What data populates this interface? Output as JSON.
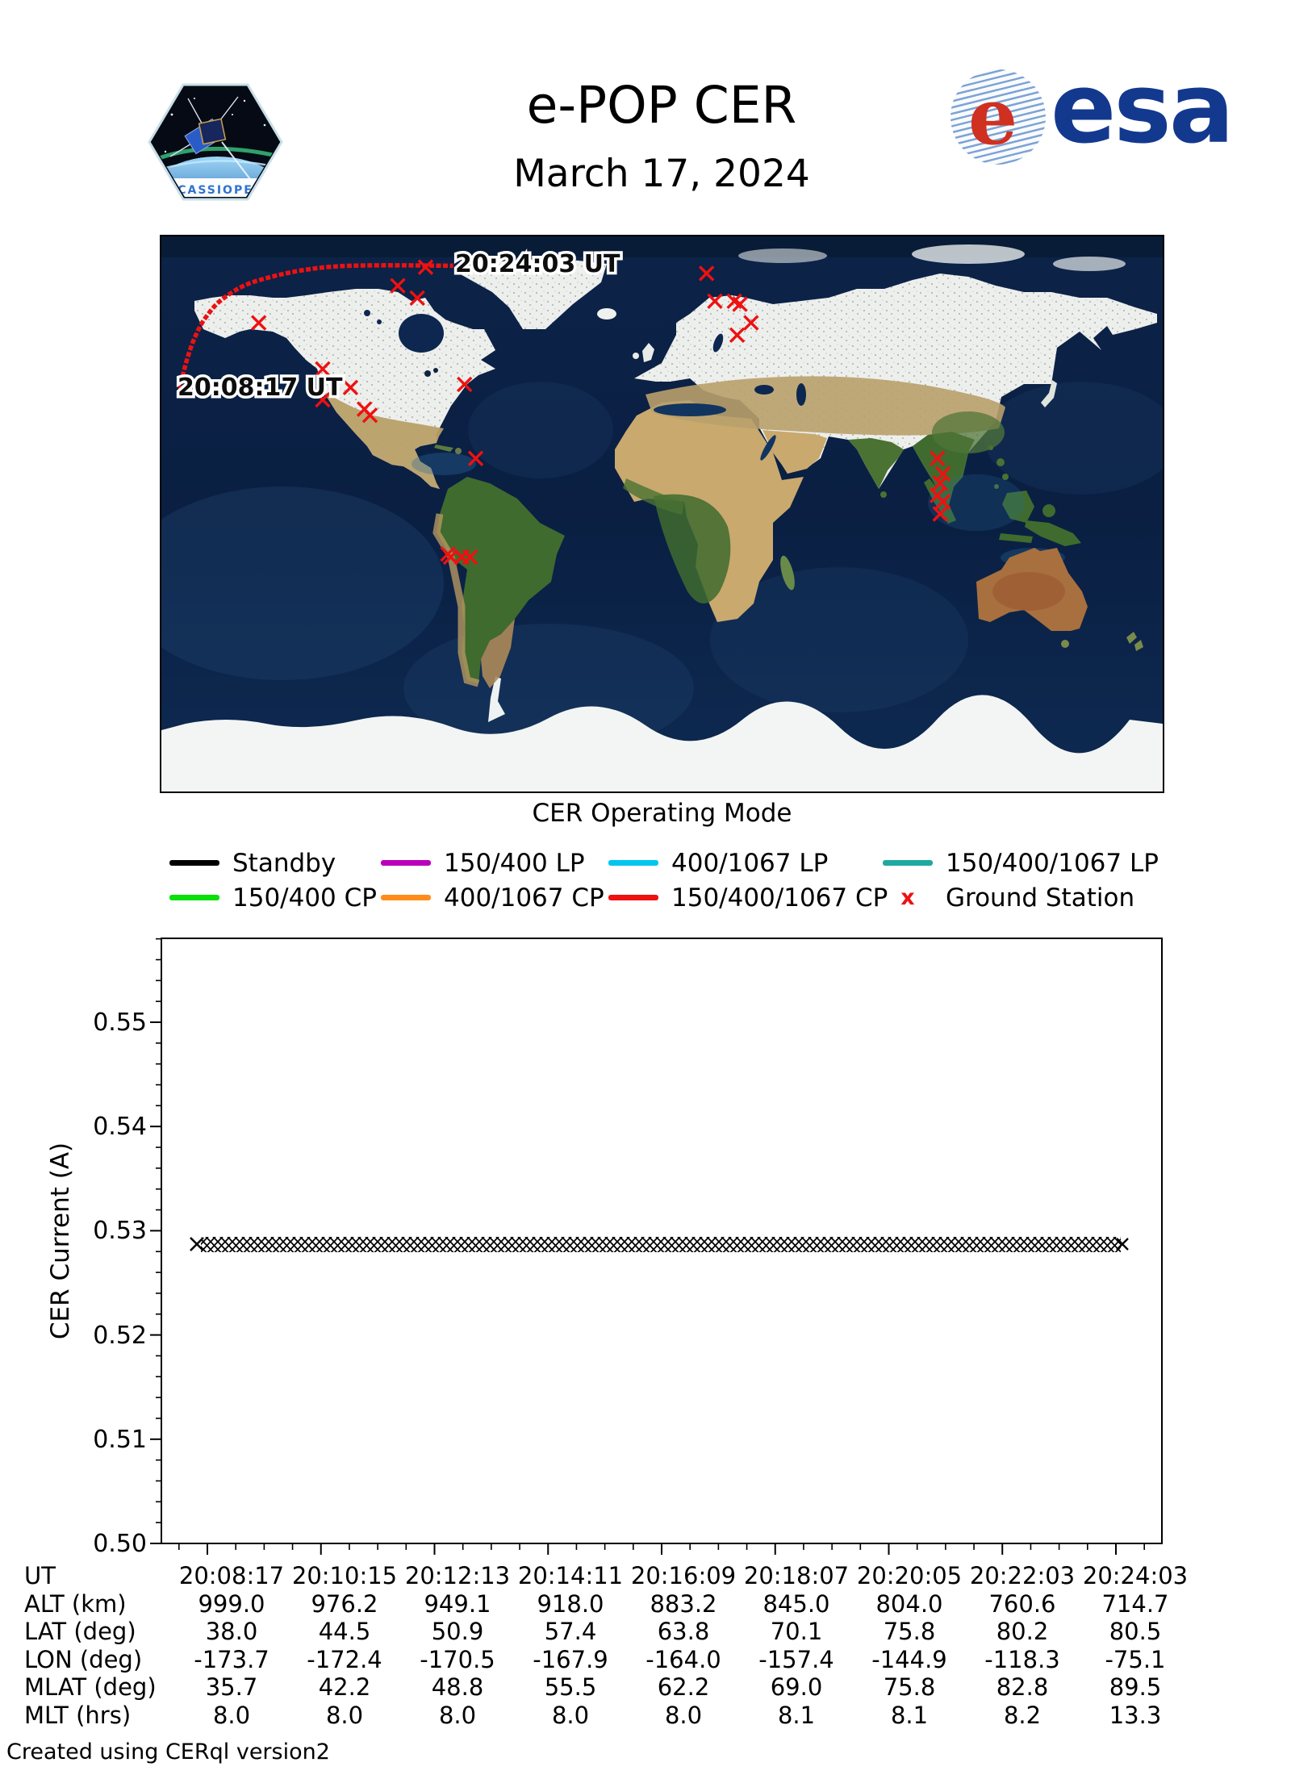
{
  "header": {
    "title": "e-POP CER",
    "date": "March 17, 2024",
    "patch_label": "CASSIOPE",
    "esa_text": "esa",
    "esa_e": "e"
  },
  "map": {
    "track_start_label": "20:08:17 UT",
    "track_end_label": "20:24:03 UT",
    "caption": "CER Operating Mode"
  },
  "legend": {
    "items": [
      {
        "label": "Standby",
        "color": "#000000",
        "type": "line"
      },
      {
        "label": "150/400 LP",
        "color": "#bb00bb",
        "type": "line"
      },
      {
        "label": "400/1067 LP",
        "color": "#00c6f0",
        "type": "line"
      },
      {
        "label": "150/400/1067 LP",
        "color": "#1fa8a2",
        "type": "line"
      },
      {
        "label": "150/400 CP",
        "color": "#0ae00a",
        "type": "line"
      },
      {
        "label": "400/1067 CP",
        "color": "#ff8c1a",
        "type": "line"
      },
      {
        "label": "150/400/1067 CP",
        "color": "#ee1111",
        "type": "line"
      },
      {
        "label": "Ground Station",
        "color": "#ee1111",
        "type": "x-marker",
        "marker": "x"
      }
    ]
  },
  "chart_data": [
    {
      "type": "map",
      "projection": "equirectangular",
      "extent": {
        "lon": [
          -180,
          180
        ],
        "lat": [
          -90,
          90
        ]
      },
      "title": "CER Operating Mode",
      "ground_track": {
        "mode": "150/400/1067 CP",
        "color": "#ee1111",
        "start_label": "20:08:17 UT",
        "end_label": "20:24:03 UT",
        "points_lon_lat": [
          [
            -173.7,
            38.0
          ],
          [
            -172.4,
            44.5
          ],
          [
            -170.5,
            50.9
          ],
          [
            -167.9,
            57.4
          ],
          [
            -164.0,
            63.8
          ],
          [
            -157.4,
            70.1
          ],
          [
            -144.9,
            75.8
          ],
          [
            -118.3,
            80.2
          ],
          [
            -75.1,
            80.5
          ]
        ]
      },
      "ground_stations_lon_lat": [
        [
          -145,
          62
        ],
        [
          -95,
          74
        ],
        [
          -88,
          70
        ],
        [
          -85,
          80
        ],
        [
          -122,
          47
        ],
        [
          -112,
          41
        ],
        [
          -122,
          37
        ],
        [
          -107,
          34
        ],
        [
          -105,
          32
        ],
        [
          -71,
          42
        ],
        [
          -67,
          18
        ],
        [
          16,
          78
        ],
        [
          19,
          69
        ],
        [
          26,
          69
        ],
        [
          28,
          68
        ],
        [
          32,
          62
        ],
        [
          27,
          58
        ],
        [
          99,
          18
        ],
        [
          101,
          13
        ],
        [
          100,
          10
        ],
        [
          99,
          6
        ],
        [
          101,
          4
        ],
        [
          100,
          0
        ],
        [
          -77,
          -13
        ],
        [
          -76,
          -14
        ],
        [
          -72,
          -14
        ],
        [
          -69,
          -14
        ]
      ]
    },
    {
      "type": "scatter",
      "marker": "x",
      "color": "#000000",
      "ylabel": "CER Current (A)",
      "ylim": [
        0.5,
        0.558
      ],
      "y_ticks": [
        "0.50",
        "0.51",
        "0.52",
        "0.53",
        "0.54",
        "0.55"
      ],
      "x_tick_labels": [
        "20:08:17",
        "20:10:15",
        "20:12:13",
        "20:14:11",
        "20:16:09",
        "20:18:07",
        "20:20:05",
        "20:22:03",
        "20:24:03"
      ],
      "series": [
        {
          "name": "CER Current",
          "y_constant": 0.5285,
          "x_range": [
            "20:08:17",
            "20:24:03"
          ],
          "description": "dense overlapping x markers forming a flat band at ~0.5285 A for the whole pass"
        }
      ]
    }
  ],
  "table": {
    "rows": [
      {
        "label": "UT",
        "values": [
          "20:08:17",
          "20:10:15",
          "20:12:13",
          "20:14:11",
          "20:16:09",
          "20:18:07",
          "20:20:05",
          "20:22:03",
          "20:24:03"
        ]
      },
      {
        "label": "ALT (km)",
        "values": [
          "999.0",
          "976.2",
          "949.1",
          "918.0",
          "883.2",
          "845.0",
          "804.0",
          "760.6",
          "714.7"
        ]
      },
      {
        "label": "LAT (deg)",
        "values": [
          "38.0",
          "44.5",
          "50.9",
          "57.4",
          "63.8",
          "70.1",
          "75.8",
          "80.2",
          "80.5"
        ]
      },
      {
        "label": "LON (deg)",
        "values": [
          "-173.7",
          "-172.4",
          "-170.5",
          "-167.9",
          "-164.0",
          "-157.4",
          "-144.9",
          "-118.3",
          "-75.1"
        ]
      },
      {
        "label": "MLAT (deg)",
        "values": [
          "35.7",
          "42.2",
          "48.8",
          "55.5",
          "62.2",
          "69.0",
          "75.8",
          "82.8",
          "89.5"
        ]
      },
      {
        "label": "MLT (hrs)",
        "values": [
          "8.0",
          "8.0",
          "8.0",
          "8.0",
          "8.0",
          "8.1",
          "8.1",
          "8.2",
          "13.3"
        ]
      }
    ]
  },
  "footer": {
    "credit": "Created using CERql version2"
  }
}
